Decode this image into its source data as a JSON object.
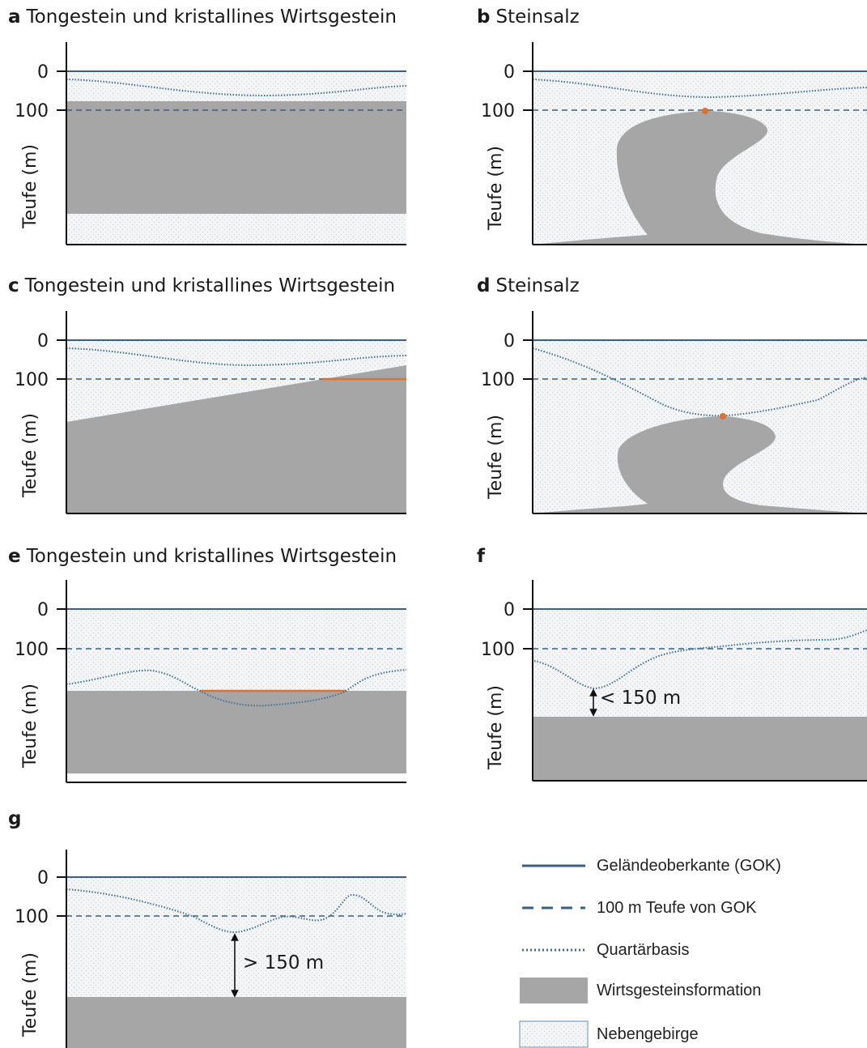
{
  "panels": {
    "a": {
      "letter": "a",
      "title": "Tongestein und kristallines Wirtsgestein"
    },
    "b": {
      "letter": "b",
      "title": "Steinsalz"
    },
    "c": {
      "letter": "c",
      "title": "Tongestein und kristallines Wirtsgestein"
    },
    "d": {
      "letter": "d",
      "title": "Steinsalz"
    },
    "e": {
      "letter": "e",
      "title": "Tongestein und kristallines Wirtsgestein"
    },
    "f": {
      "letter": "f",
      "title": ""
    },
    "g": {
      "letter": "g",
      "title": ""
    }
  },
  "axis": {
    "ylabel": "Teufe (m)",
    "ticks": [
      "0",
      "100"
    ]
  },
  "annotations": {
    "f_distance": "< 150 m",
    "g_distance": "> 150 m"
  },
  "legend": {
    "items": [
      {
        "label": "Geländeoberkante (GOK)",
        "symbol": "solid-line"
      },
      {
        "label": "100 m Teufe von GOK",
        "symbol": "dashed-line"
      },
      {
        "label": "Quartärbasis",
        "symbol": "dotted-line"
      },
      {
        "label": "Wirtsgesteinsformation",
        "symbol": "grey-box"
      },
      {
        "label": "Nebengebirge",
        "symbol": "dotted-box"
      }
    ]
  },
  "colors": {
    "surface_line": "#3d5f80",
    "dashed_line": "#3d5f80",
    "quartaer_line": "#3f6f98",
    "host_rock": "#a6a6a6",
    "country_rock": "#f2f4f6",
    "contact_marker": "#e0702b"
  }
}
